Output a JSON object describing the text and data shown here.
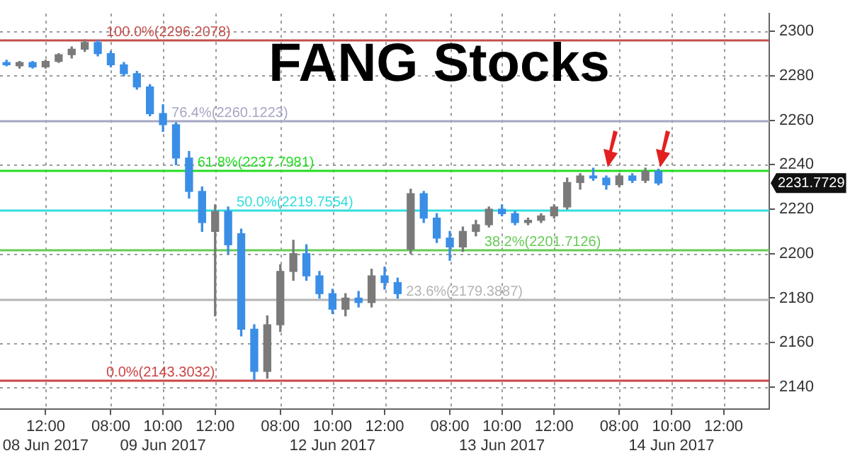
{
  "chart_data": {
    "type": "candlestick",
    "title": "FANG Stocks",
    "categories": [
      null,
      null,
      null,
      "12:00\n08 Jun 2017",
      null,
      null,
      null,
      null,
      "08:00",
      null,
      null,
      null,
      "10:00\n09 Jun 2017",
      null,
      null,
      null,
      "12:00",
      null,
      null,
      null,
      null,
      "08:00",
      null,
      null,
      null,
      "10:00\n12 Jun 2017",
      null,
      null,
      null,
      "12:00",
      null,
      null,
      null,
      null,
      "08:00",
      null,
      null,
      null,
      "10:00\n13 Jun 2017",
      null,
      null,
      null,
      "12:00",
      null,
      null,
      null,
      null,
      "08:00",
      null,
      null,
      null,
      "10:00\n14 Jun 2017",
      null,
      null,
      null,
      "12:00",
      null,
      null,
      null
    ],
    "ohlc": [
      [
        2286,
        2287,
        2284.5,
        2285
      ],
      [
        2284.5,
        2286.5,
        2283.5,
        2286
      ],
      [
        2286,
        2286.5,
        2283.5,
        2284
      ],
      [
        2284,
        2287,
        2283.5,
        2286.5
      ],
      [
        2286.5,
        2290,
        2286,
        2289.5
      ],
      [
        2289.5,
        2293,
        2288,
        2292
      ],
      [
        2292,
        2296.2,
        2291,
        2295
      ],
      [
        2295,
        2296,
        2289,
        2290
      ],
      [
        2290,
        2291,
        2284,
        2285
      ],
      [
        2285,
        2286,
        2280,
        2281
      ],
      [
        2281,
        2282,
        2274,
        2275
      ],
      [
        2275,
        2276,
        2262,
        2263
      ],
      [
        2263,
        2267,
        2255,
        2258
      ],
      [
        2258,
        2259,
        2240,
        2243
      ],
      [
        2243,
        2246,
        2225,
        2228
      ],
      [
        2228,
        2230,
        2210,
        2214
      ],
      [
        2210,
        2222,
        2172,
        2219
      ],
      [
        2219,
        2221,
        2200,
        2204
      ],
      [
        2209,
        2211,
        2163,
        2166
      ],
      [
        2166,
        2168,
        2143.3,
        2147
      ],
      [
        2147,
        2172,
        2144,
        2168
      ],
      [
        2168,
        2195,
        2165,
        2192
      ],
      [
        2192,
        2206,
        2188,
        2200
      ],
      [
        2200,
        2204,
        2188,
        2190
      ],
      [
        2190,
        2192,
        2180,
        2182
      ],
      [
        2182,
        2184,
        2173,
        2175
      ],
      [
        2175,
        2182,
        2172,
        2180
      ],
      [
        2180,
        2183,
        2176,
        2178
      ],
      [
        2178,
        2193,
        2176,
        2190
      ],
      [
        2190,
        2194,
        2184,
        2187
      ],
      [
        2187,
        2189,
        2180,
        2182
      ],
      [
        2202,
        2229,
        2200,
        2227
      ],
      [
        2227,
        2228,
        2214,
        2216
      ],
      [
        2216,
        2218,
        2205,
        2207
      ],
      [
        2207,
        2210,
        2197,
        2203
      ],
      [
        2203,
        2212,
        2201,
        2210
      ],
      [
        2210,
        2215,
        2208,
        2213
      ],
      [
        2213,
        2221,
        2212,
        2220
      ],
      [
        2220,
        2222,
        2217,
        2218
      ],
      [
        2218,
        2219,
        2213,
        2214
      ],
      [
        2214,
        2216,
        2213,
        2215
      ],
      [
        2215,
        2218,
        2214,
        2217
      ],
      [
        2217,
        2222,
        2216,
        2221
      ],
      [
        2221,
        2234,
        2220,
        2232
      ],
      [
        2232,
        2236,
        2229,
        2235
      ],
      [
        2235,
        2238.5,
        2233,
        2234
      ],
      [
        2234,
        2235,
        2229,
        2231
      ],
      [
        2231,
        2236,
        2230,
        2235
      ],
      [
        2235,
        2236,
        2232,
        2233
      ],
      [
        2233,
        2238.5,
        2232,
        2237
      ],
      [
        2237,
        2238,
        2231,
        2231.7729
      ],
      null,
      null,
      null,
      null,
      null,
      null,
      null,
      null
    ],
    "colors": [
      "#3a8ee6",
      "#7a7a7a",
      "#3a8ee6",
      "#7a7a7a",
      "#7a7a7a",
      "#7a7a7a",
      "#7a7a7a",
      "#3a8ee6",
      "#3a8ee6",
      "#3a8ee6",
      "#3a8ee6",
      "#3a8ee6",
      "#3a8ee6",
      "#3a8ee6",
      "#3a8ee6",
      "#3a8ee6",
      "#7a7a7a",
      "#3a8ee6",
      "#3a8ee6",
      "#3a8ee6",
      "#7a7a7a",
      "#7a7a7a",
      "#7a7a7a",
      "#3a8ee6",
      "#3a8ee6",
      "#3a8ee6",
      "#7a7a7a",
      "#3a8ee6",
      "#7a7a7a",
      "#3a8ee6",
      "#3a8ee6",
      "#7a7a7a",
      "#3a8ee6",
      "#3a8ee6",
      "#3a8ee6",
      "#7a7a7a",
      "#7a7a7a",
      "#7a7a7a",
      "#3a8ee6",
      "#3a8ee6",
      "#7a7a7a",
      "#7a7a7a",
      "#7a7a7a",
      "#7a7a7a",
      "#7a7a7a",
      "#3a8ee6",
      "#3a8ee6",
      "#7a7a7a",
      "#3a8ee6",
      "#7a7a7a",
      "#3a8ee6",
      null,
      null,
      null,
      null,
      null,
      null,
      null,
      null
    ],
    "ylim": [
      2130,
      2308
    ],
    "yticks": [
      2140,
      2160,
      2180,
      2200,
      2220,
      2240,
      2260,
      2280,
      2300
    ],
    "grid": true,
    "ref_lines": [
      {
        "axis": "y",
        "value": 2296.2078,
        "label": "100.0%(2296.2078)",
        "color": "#c0504d"
      },
      {
        "axis": "y",
        "value": 2260.1223,
        "label": "76.4%(2260.1223)",
        "color": "#a6a6c4"
      },
      {
        "axis": "y",
        "value": 2237.7981,
        "label": "61.8%(2237.7981)",
        "color": "#22dd22"
      },
      {
        "axis": "y",
        "value": 2219.7554,
        "label": "50.0%(2219.7554)",
        "color": "#33dddd"
      },
      {
        "axis": "y",
        "value": 2201.7126,
        "label": "38.2%(2201.7126)",
        "color": "#66cc55"
      },
      {
        "axis": "y",
        "value": 2179.3887,
        "label": "23.6%(2179.3887)",
        "color": "#b4b4b4"
      },
      {
        "axis": "y",
        "value": 2143.3032,
        "label": "0.0%(2143.3032)",
        "color": "#cc4444"
      }
    ],
    "annotations": [
      "2231.7729"
    ]
  }
}
